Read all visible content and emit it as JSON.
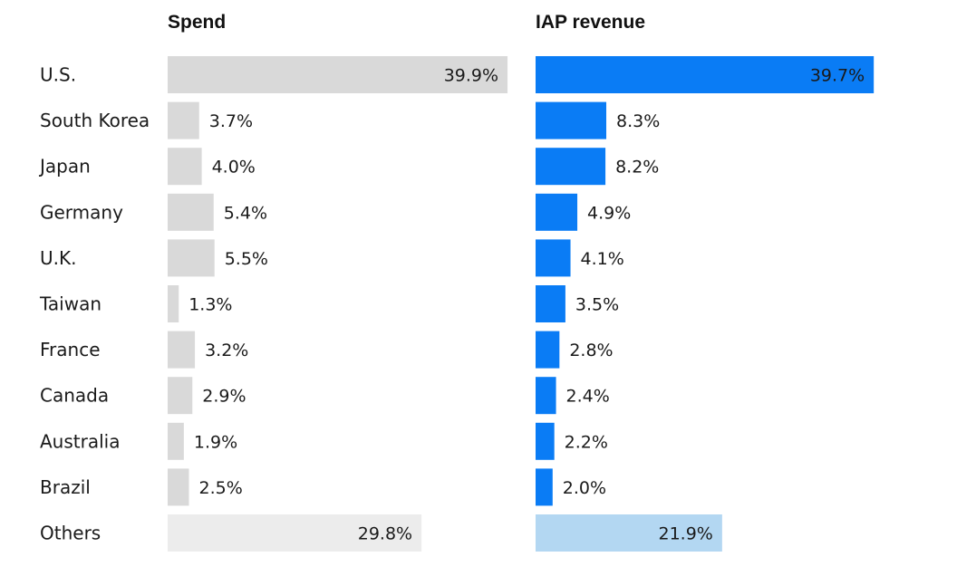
{
  "chart_data": {
    "type": "bar",
    "orientation": "horizontal",
    "categories": [
      "U.S.",
      "South Korea",
      "Japan",
      "Germany",
      "U.K.",
      "Taiwan",
      "France",
      "Canada",
      "Australia",
      "Brazil",
      "Others"
    ],
    "series": [
      {
        "name": "Spend",
        "values": [
          39.9,
          3.7,
          4.0,
          5.4,
          5.5,
          1.3,
          3.2,
          2.9,
          1.9,
          2.5,
          29.8
        ],
        "labels": [
          "39.9%",
          "3.7%",
          "4.0%",
          "5.4%",
          "5.5%",
          "1.3%",
          "3.2%",
          "2.9%",
          "1.9%",
          "2.5%",
          "29.8%"
        ],
        "color": "#d9d9d9",
        "others_color": "#ececec"
      },
      {
        "name": "IAP revenue",
        "values": [
          39.7,
          8.3,
          8.2,
          4.9,
          4.1,
          3.5,
          2.8,
          2.4,
          2.2,
          2.0,
          21.9
        ],
        "labels": [
          "39.7%",
          "8.3%",
          "8.2%",
          "4.9%",
          "4.1%",
          "3.5%",
          "2.8%",
          "2.4%",
          "2.2%",
          "2.0%",
          "21.9%"
        ],
        "color": "#0a7cf5",
        "others_color": "#b3d7f2"
      }
    ],
    "xlim": [
      0,
      40
    ],
    "grid": false,
    "legend": "none"
  }
}
